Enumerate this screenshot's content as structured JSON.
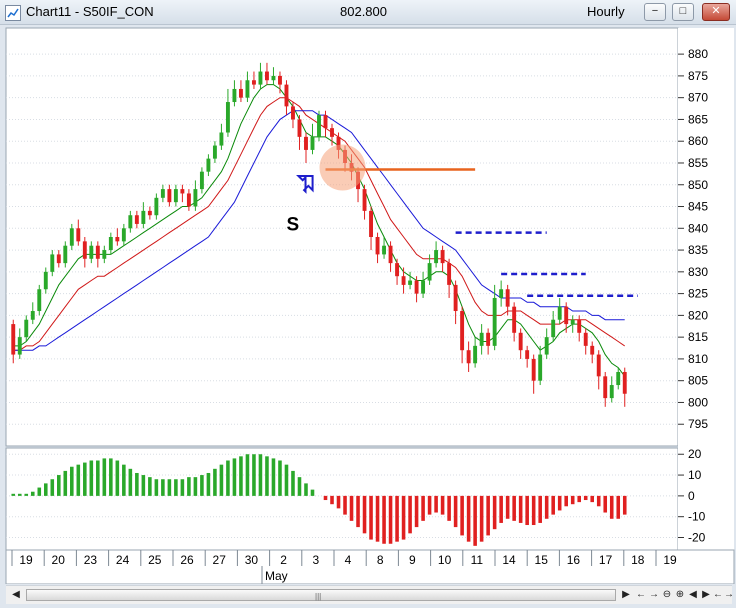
{
  "window": {
    "title": "Chart11 - S50IF_CON",
    "last_price": "802.800",
    "interval": "Hourly",
    "minimize_glyph": "−",
    "maximize_glyph": "□",
    "close_glyph": "✕"
  },
  "scrollbar": {
    "left_arrow": "◀",
    "right_arrow": "▶",
    "grip": "|||",
    "controls": [
      "←",
      "→",
      "⊖",
      "⊕",
      "◀",
      "▶",
      "←",
      "→"
    ]
  },
  "annotations": {
    "signal_label": "S",
    "arrow_icon": "arrow-up-right-icon",
    "highlight_color": "#f5a27a",
    "support_line_color": "#e8641e",
    "resistance_line_color": "#1e1ecc"
  },
  "colors": {
    "up": "#2aa82a",
    "down": "#e02020",
    "ma_fast": "#0a8a0a",
    "ma_mid": "#d01818",
    "ma_slow": "#1a1ad8",
    "grid": "#d8dde4"
  },
  "chart_data": [
    {
      "type": "candlestick",
      "title": "",
      "ylim": [
        790,
        886
      ],
      "y_ticks": [
        795,
        800,
        805,
        810,
        815,
        820,
        825,
        830,
        835,
        840,
        845,
        850,
        855,
        860,
        865,
        870,
        875,
        880
      ],
      "x_tick_labels": [
        "19",
        "20",
        "23",
        "24",
        "25",
        "26",
        "27",
        "30",
        "2",
        "3",
        "4",
        "8",
        "9",
        "10",
        "11",
        "14",
        "15",
        "16",
        "17",
        "18",
        "19"
      ],
      "month_label": "May",
      "grid": true,
      "candles": [
        [
          818,
          811,
          819,
          809
        ],
        [
          811,
          815,
          817,
          810
        ],
        [
          815,
          819,
          820,
          814
        ],
        [
          819,
          821,
          823,
          818
        ],
        [
          821,
          826,
          827,
          820
        ],
        [
          826,
          830,
          831,
          825
        ],
        [
          830,
          834,
          835,
          829
        ],
        [
          834,
          832,
          835,
          831
        ],
        [
          832,
          836,
          837,
          831
        ],
        [
          836,
          840,
          841,
          835
        ],
        [
          840,
          837,
          842,
          836
        ],
        [
          837,
          833,
          838,
          831
        ],
        [
          833,
          836,
          837,
          832
        ],
        [
          836,
          833,
          837,
          831
        ],
        [
          833,
          835,
          836,
          832
        ],
        [
          835,
          838,
          839,
          834
        ],
        [
          838,
          837,
          840,
          836
        ],
        [
          837,
          840,
          841,
          836
        ],
        [
          840,
          843,
          844,
          839
        ],
        [
          843,
          841,
          844,
          840
        ],
        [
          841,
          844,
          846,
          840
        ],
        [
          844,
          843,
          845,
          842
        ],
        [
          843,
          847,
          848,
          842
        ],
        [
          847,
          849,
          850,
          846
        ],
        [
          849,
          846,
          850,
          845
        ],
        [
          846,
          849,
          850,
          845
        ],
        [
          849,
          848,
          850,
          846
        ],
        [
          848,
          845,
          849,
          844
        ],
        [
          845,
          849,
          851,
          844
        ],
        [
          849,
          853,
          854,
          848
        ],
        [
          853,
          856,
          857,
          852
        ],
        [
          856,
          859,
          860,
          855
        ],
        [
          859,
          862,
          864,
          858
        ],
        [
          862,
          869,
          872,
          861
        ],
        [
          869,
          872,
          874,
          868
        ],
        [
          872,
          870,
          874,
          869
        ],
        [
          870,
          874,
          876,
          869
        ],
        [
          874,
          873,
          876,
          872
        ],
        [
          873,
          876,
          878,
          872
        ],
        [
          876,
          874,
          878,
          873
        ],
        [
          874,
          875,
          877,
          873
        ],
        [
          875,
          873,
          876,
          871
        ],
        [
          873,
          868,
          874,
          866
        ],
        [
          868,
          865,
          869,
          863
        ],
        [
          865,
          861,
          866,
          858
        ],
        [
          861,
          858,
          862,
          855
        ],
        [
          858,
          861,
          864,
          857
        ],
        [
          861,
          866,
          867,
          860
        ],
        [
          866,
          863,
          867,
          861
        ],
        [
          863,
          861,
          864,
          859
        ],
        [
          861,
          858,
          862,
          856
        ],
        [
          858,
          855,
          859,
          853
        ],
        [
          855,
          853,
          857,
          851
        ],
        [
          853,
          849,
          854,
          846
        ],
        [
          849,
          844,
          850,
          842
        ],
        [
          844,
          838,
          845,
          835
        ],
        [
          838,
          834,
          839,
          832
        ],
        [
          834,
          836,
          838,
          833
        ],
        [
          836,
          832,
          837,
          830
        ],
        [
          832,
          829,
          833,
          827
        ],
        [
          829,
          827,
          831,
          825
        ],
        [
          827,
          828,
          830,
          826
        ],
        [
          828,
          825,
          829,
          823
        ],
        [
          825,
          828,
          830,
          824
        ],
        [
          828,
          832,
          834,
          827
        ],
        [
          832,
          835,
          837,
          831
        ],
        [
          835,
          832,
          836,
          830
        ],
        [
          832,
          827,
          833,
          824
        ],
        [
          827,
          821,
          828,
          818
        ],
        [
          821,
          812,
          822,
          809
        ],
        [
          812,
          809,
          814,
          807
        ],
        [
          809,
          813,
          815,
          808
        ],
        [
          813,
          816,
          818,
          811
        ],
        [
          816,
          813,
          817,
          811
        ],
        [
          813,
          824,
          827,
          812
        ],
        [
          824,
          826,
          828,
          822
        ],
        [
          826,
          822,
          827,
          820
        ],
        [
          822,
          816,
          823,
          814
        ],
        [
          816,
          812,
          817,
          810
        ],
        [
          812,
          810,
          813,
          808
        ],
        [
          810,
          805,
          811,
          802
        ],
        [
          805,
          811,
          813,
          804
        ],
        [
          811,
          815,
          817,
          810
        ],
        [
          815,
          819,
          821,
          814
        ],
        [
          819,
          822,
          824,
          818
        ],
        [
          822,
          818,
          823,
          816
        ],
        [
          818,
          819,
          820,
          816
        ],
        [
          819,
          816,
          820,
          814
        ],
        [
          816,
          813,
          817,
          811
        ],
        [
          813,
          811,
          814,
          809
        ],
        [
          811,
          806,
          812,
          803
        ],
        [
          806,
          801,
          807,
          799
        ],
        [
          801,
          804,
          806,
          800
        ],
        [
          804,
          807,
          808,
          803
        ],
        [
          807,
          802,
          808,
          799
        ]
      ],
      "series": [
        {
          "name": "",
          "role": "ma_fast",
          "values": [
            813,
            813,
            814,
            816,
            818,
            821,
            824,
            827,
            829,
            831,
            833,
            834,
            834,
            834,
            834,
            834,
            835,
            836,
            837,
            838,
            839,
            840,
            841,
            842,
            843,
            844,
            845,
            845,
            846,
            847,
            849,
            851,
            853,
            856,
            860,
            864,
            867,
            870,
            872,
            873,
            873,
            872,
            870,
            868,
            865,
            862,
            861,
            861,
            861,
            860,
            859,
            857,
            855,
            852,
            849,
            845,
            841,
            838,
            835,
            832,
            830,
            829,
            828,
            828,
            829,
            830,
            830,
            829,
            826,
            822,
            818,
            815,
            814,
            814,
            815,
            817,
            819,
            819,
            818,
            816,
            814,
            812,
            813,
            814,
            816,
            817,
            818,
            818,
            817,
            816,
            814,
            811,
            809,
            808,
            806
          ]
        },
        {
          "name": "",
          "role": "ma_mid",
          "values": [
            812,
            812,
            813,
            813,
            814,
            816,
            818,
            820,
            822,
            824,
            826,
            827,
            828,
            829,
            829,
            830,
            831,
            832,
            833,
            834,
            835,
            836,
            837,
            838,
            839,
            840,
            841,
            842,
            843,
            844,
            845,
            847,
            849,
            851,
            854,
            857,
            860,
            863,
            866,
            868,
            869,
            870,
            870,
            869,
            868,
            866,
            865,
            864,
            863,
            862,
            861,
            860,
            858,
            856,
            854,
            851,
            848,
            845,
            842,
            840,
            838,
            836,
            834,
            833,
            833,
            833,
            833,
            832,
            831,
            829,
            826,
            823,
            821,
            820,
            820,
            820,
            821,
            821,
            821,
            820,
            819,
            818,
            818,
            818,
            818,
            819,
            819,
            819,
            819,
            818,
            817,
            816,
            815,
            814,
            813
          ]
        },
        {
          "name": "",
          "role": "ma_slow",
          "values": [
            812,
            812,
            812,
            812,
            813,
            813,
            814,
            815,
            816,
            817,
            818,
            819,
            820,
            821,
            822,
            823,
            824,
            825,
            826,
            827,
            828,
            829,
            830,
            831,
            832,
            833,
            834,
            835,
            836,
            837,
            838,
            840,
            842,
            844,
            846,
            849,
            852,
            855,
            858,
            861,
            863,
            865,
            866,
            867,
            867,
            867,
            867,
            866,
            866,
            865,
            864,
            863,
            862,
            860,
            858,
            856,
            854,
            852,
            850,
            848,
            846,
            844,
            842,
            840,
            839,
            838,
            837,
            836,
            835,
            833,
            831,
            829,
            827,
            826,
            825,
            824,
            824,
            824,
            824,
            823,
            823,
            822,
            822,
            822,
            822,
            822,
            821,
            821,
            821,
            820,
            820,
            819,
            819,
            819,
            819
          ]
        }
      ],
      "support_line": {
        "y": 853.5,
        "from_index": 48,
        "to_index": 71
      },
      "resistance_lines": [
        {
          "y": 839,
          "from_index": 68,
          "to_index": 82
        },
        {
          "y": 829.5,
          "from_index": 75,
          "to_index": 88
        },
        {
          "y": 824.5,
          "from_index": 79,
          "to_index": 96
        }
      ],
      "signal_candle_index": 50
    },
    {
      "type": "bar",
      "title": "",
      "ylim": [
        -26,
        23
      ],
      "y_ticks": [
        20,
        10,
        0,
        -10,
        -20
      ],
      "grid": true,
      "values": [
        1,
        1,
        1,
        2,
        4,
        6,
        8,
        10,
        12,
        14,
        15,
        16,
        17,
        17,
        18,
        18,
        17,
        15,
        13,
        11,
        10,
        9,
        8,
        8,
        8,
        8,
        8,
        9,
        9,
        10,
        11,
        13,
        15,
        17,
        18,
        19,
        20,
        20,
        20,
        19,
        18,
        17,
        15,
        12,
        9,
        6,
        3,
        0,
        -2,
        -4,
        -6,
        -9,
        -12,
        -15,
        -18,
        -21,
        -22,
        -23,
        -23,
        -22,
        -21,
        -18,
        -15,
        -12,
        -9,
        -8,
        -9,
        -12,
        -15,
        -19,
        -22,
        -24,
        -22,
        -19,
        -16,
        -13,
        -11,
        -12,
        -13,
        -14,
        -14,
        -13,
        -11,
        -9,
        -7,
        -5,
        -4,
        -3,
        -2,
        -3,
        -5,
        -8,
        -11,
        -11,
        -9
      ]
    }
  ]
}
